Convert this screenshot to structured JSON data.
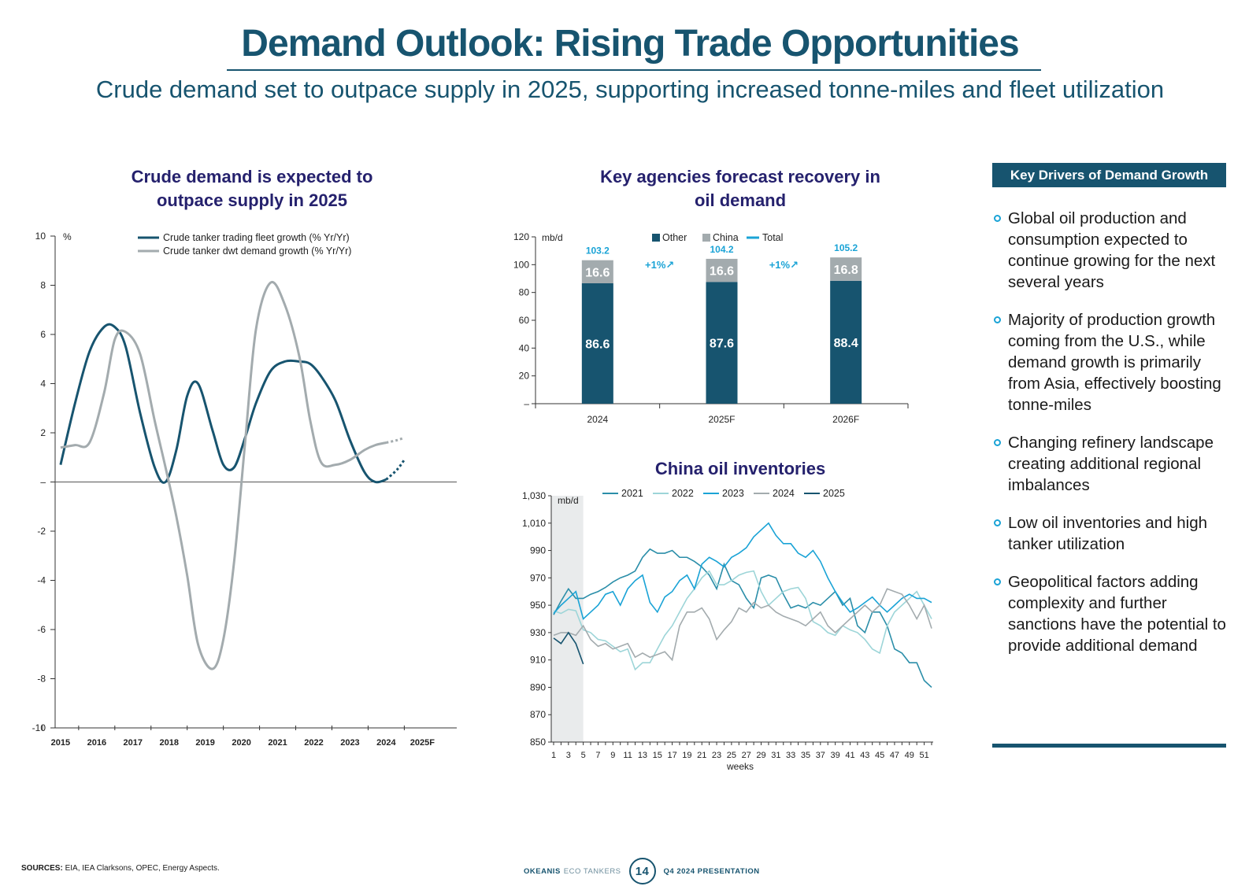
{
  "page": {
    "title": "Demand Outlook: Rising Trade Opportunities",
    "subtitle": "Crude demand set to outpace supply in 2025, supporting increased tonne-miles and fleet utilization",
    "sources_label": "SOURCES:",
    "sources_text": "EIA, IEA Clarksons, OPEC, Energy Aspects.",
    "footer_brand1": "OKEANIS",
    "footer_brand2": "ECO TANKERS",
    "footer_page": "14",
    "footer_presentation": "Q4 2024 PRESENTATION"
  },
  "colors": {
    "navy": "#17546f",
    "gray": "#a3abae",
    "cyan": "#1aa3d6",
    "title_purple": "#25216d",
    "shade": "#e9ebec"
  },
  "drivers": {
    "heading": "Key Drivers of Demand Growth",
    "items": [
      "Global oil production and consumption expected to continue growing for the next several years",
      "Majority of production growth coming from the U.S., while demand growth is primarily from Asia, effectively boosting tonne-miles",
      "Changing refinery landscape creating additional regional imbalances",
      "Low oil inventories and high tanker utilization",
      "Geopolitical factors adding complexity and further sanctions have the potential to provide additional demand"
    ]
  },
  "chart_data": [
    {
      "type": "line",
      "title": "Crude demand is expected to outpace supply in 2025",
      "ylabel": "%",
      "ylim": [
        -10,
        10
      ],
      "yticks": [
        10,
        8,
        6,
        4,
        2,
        0,
        -2,
        -4,
        -6,
        -8,
        -10
      ],
      "ytick_labels": [
        "10",
        "8",
        "6",
        "4",
        "2",
        "–",
        "-2",
        "-4",
        "-6",
        "-8",
        "-10"
      ],
      "categories": [
        "2015",
        "2016",
        "2017",
        "2018",
        "2019",
        "2020",
        "2021",
        "2022",
        "2023",
        "2024",
        "2025F"
      ],
      "series": [
        {
          "name": "Crude tanker trading fleet growth (%  Yr/Yr)",
          "color": "#17546f",
          "x": [
            2015,
            2015.4,
            2015.8,
            2016.2,
            2016.5,
            2016.8,
            2017.2,
            2017.6,
            2017.9,
            2018.2,
            2018.5,
            2018.8,
            2019.2,
            2019.5,
            2019.8,
            2020.1,
            2020.4,
            2020.8,
            2021.2,
            2021.6,
            2021.9,
            2022.2,
            2022.6,
            2023.0,
            2023.4,
            2023.7,
            2024.0,
            2024.3,
            2024.5
          ],
          "values": [
            0.7,
            3.2,
            5.3,
            6.3,
            6.3,
            5.5,
            2.8,
            0.6,
            0.0,
            1.3,
            3.5,
            4.0,
            2.1,
            0.7,
            0.6,
            1.8,
            3.2,
            4.5,
            4.9,
            4.9,
            4.8,
            4.3,
            3.3,
            1.7,
            0.4,
            0.0,
            0.1,
            0.5,
            0.9
          ],
          "forecast_from": 2024.0
        },
        {
          "name": "Crude tanker dwt demand growth (%  Yr/Yr)",
          "color": "#a3abae",
          "x": [
            2015,
            2015.4,
            2015.8,
            2016.2,
            2016.5,
            2016.8,
            2017.2,
            2017.6,
            2017.9,
            2018.2,
            2018.5,
            2018.8,
            2019.2,
            2019.5,
            2019.8,
            2020.1,
            2020.4,
            2020.8,
            2021.2,
            2021.6,
            2021.9,
            2022.2,
            2022.6,
            2023.0,
            2023.4,
            2023.7,
            2024.0,
            2024.3,
            2024.5
          ],
          "values": [
            1.4,
            1.5,
            1.6,
            3.6,
            5.8,
            6.1,
            5.2,
            2.5,
            0.6,
            -1.4,
            -3.8,
            -6.6,
            -7.6,
            -6.4,
            -3.2,
            1.6,
            6.2,
            8.1,
            7.2,
            5.1,
            2.5,
            0.8,
            0.7,
            0.9,
            1.3,
            1.5,
            1.6,
            1.7,
            1.8
          ],
          "forecast_from": 2024.0
        }
      ]
    },
    {
      "type": "bar",
      "title": "Key agencies forecast recovery in oil demand",
      "ylabel": "mb/d",
      "ylim": [
        0,
        120
      ],
      "yticks": [
        120,
        100,
        80,
        60,
        40,
        20,
        0
      ],
      "ytick_labels": [
        "120",
        "100",
        "80",
        "60",
        "40",
        "20",
        "–"
      ],
      "categories": [
        "2024",
        "2025F",
        "2026F"
      ],
      "series": [
        {
          "name": "Other",
          "color": "#17546f",
          "values": [
            86.6,
            87.6,
            88.4
          ]
        },
        {
          "name": "China",
          "color": "#a3abae",
          "values": [
            16.6,
            16.6,
            16.8
          ]
        }
      ],
      "total_name": "Total",
      "totals": [
        103.2,
        104.2,
        105.2
      ],
      "growth_labels": [
        "+1%↗",
        "+1%↗"
      ]
    },
    {
      "type": "line",
      "title": "China oil inventories",
      "ylabel": "mb/d",
      "xlabel": "weeks",
      "ylim": [
        850,
        1030
      ],
      "yticks": [
        1030,
        1010,
        990,
        970,
        950,
        930,
        910,
        890,
        870,
        850
      ],
      "ytick_labels": [
        "1,030",
        "1,010",
        "990",
        "970",
        "950",
        "930",
        "910",
        "890",
        "870",
        "850"
      ],
      "xticks": [
        1,
        3,
        5,
        7,
        9,
        11,
        13,
        15,
        17,
        19,
        21,
        23,
        25,
        27,
        29,
        31,
        33,
        35,
        37,
        39,
        41,
        43,
        45,
        47,
        49,
        51
      ],
      "shade_weeks": [
        1,
        5
      ],
      "series": [
        {
          "name": "2021",
          "color": "#2b8ea9",
          "values": [
            943,
            953,
            962,
            955,
            955,
            958,
            960,
            963,
            967,
            970,
            972,
            975,
            985,
            991,
            988,
            988,
            990,
            985,
            985,
            982,
            978,
            972,
            962,
            980,
            968,
            965,
            955,
            948,
            970,
            972,
            970,
            958,
            948,
            950,
            948,
            952,
            950,
            955,
            960,
            950,
            955,
            935,
            930,
            945,
            945,
            935,
            918,
            915,
            908,
            908,
            895,
            890
          ]
        },
        {
          "name": "2022",
          "color": "#9dd5d8",
          "values": [
            946,
            944,
            947,
            946,
            932,
            930,
            925,
            924,
            920,
            916,
            918,
            903,
            908,
            908,
            918,
            928,
            935,
            945,
            955,
            962,
            970,
            975,
            965,
            965,
            968,
            972,
            974,
            975,
            960,
            950,
            955,
            960,
            962,
            963,
            955,
            938,
            935,
            930,
            928,
            935,
            932,
            930,
            925,
            918,
            915,
            935,
            945,
            950,
            955,
            960,
            950,
            940
          ]
        },
        {
          "name": "2023",
          "color": "#1aa3d6",
          "values": [
            944,
            950,
            955,
            960,
            940,
            945,
            950,
            958,
            960,
            950,
            962,
            968,
            972,
            952,
            945,
            956,
            960,
            968,
            972,
            962,
            980,
            985,
            982,
            978,
            985,
            988,
            992,
            1000,
            1005,
            1010,
            1001,
            995,
            995,
            988,
            985,
            990,
            982,
            970,
            960,
            952,
            945,
            948,
            952,
            956,
            950,
            945,
            950,
            955,
            958,
            955,
            955,
            952
          ]
        },
        {
          "name": "2024",
          "color": "#a3abae",
          "values": [
            928,
            930,
            930,
            928,
            935,
            925,
            920,
            922,
            918,
            920,
            922,
            912,
            915,
            912,
            914,
            916,
            910,
            935,
            945,
            945,
            948,
            940,
            925,
            932,
            938,
            948,
            945,
            952,
            948,
            950,
            945,
            942,
            940,
            938,
            935,
            940,
            945,
            935,
            930,
            935,
            940,
            945,
            950,
            945,
            950,
            962,
            960,
            958,
            950,
            940,
            950,
            933
          ]
        },
        {
          "name": "2025",
          "color": "#17546f",
          "values": [
            926,
            922,
            930,
            922,
            907
          ]
        }
      ]
    }
  ]
}
